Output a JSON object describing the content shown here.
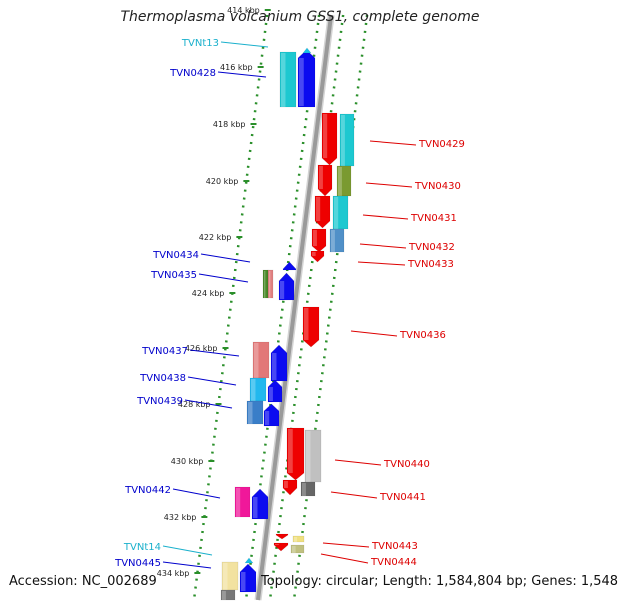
{
  "title": "Thermoplasma volcanium GSS1, complete genome",
  "footer": {
    "accession": "Accession: NC_002689",
    "topology": "Topology: circular; Length: 1,584,804 bp; Genes: 1,548"
  },
  "colors": {
    "backbone": "#9a9a9a",
    "track": "#2a8f2a",
    "reverse_label": "#0000cc",
    "forward_label": "#dd0000",
    "rna_label": "#1ab0cc"
  },
  "kbp_ticks": [
    "414 kbp",
    "416 kbp",
    "418 kbp",
    "420 kbp",
    "422 kbp",
    "424 kbp",
    "426 kbp",
    "428 kbp",
    "430 kbp",
    "432 kbp",
    "434 kbp"
  ],
  "genes_left": [
    {
      "name": "TVNt13",
      "type": "rna"
    },
    {
      "name": "TVN0428",
      "type": "cds"
    },
    {
      "name": "TVN0434",
      "type": "cds"
    },
    {
      "name": "TVN0435",
      "type": "cds"
    },
    {
      "name": "TVN0437",
      "type": "cds"
    },
    {
      "name": "TVN0438",
      "type": "cds"
    },
    {
      "name": "TVN0439",
      "type": "cds"
    },
    {
      "name": "TVN0442",
      "type": "cds"
    },
    {
      "name": "TVNt14",
      "type": "rna"
    },
    {
      "name": "TVN0445",
      "type": "cds"
    }
  ],
  "genes_right": [
    {
      "name": "TVN0429"
    },
    {
      "name": "TVN0430"
    },
    {
      "name": "TVN0431"
    },
    {
      "name": "TVN0432"
    },
    {
      "name": "TVN0433"
    },
    {
      "name": "TVN0436"
    },
    {
      "name": "TVN0440"
    },
    {
      "name": "TVN0441"
    },
    {
      "name": "TVN0443"
    },
    {
      "name": "TVN0444"
    }
  ]
}
